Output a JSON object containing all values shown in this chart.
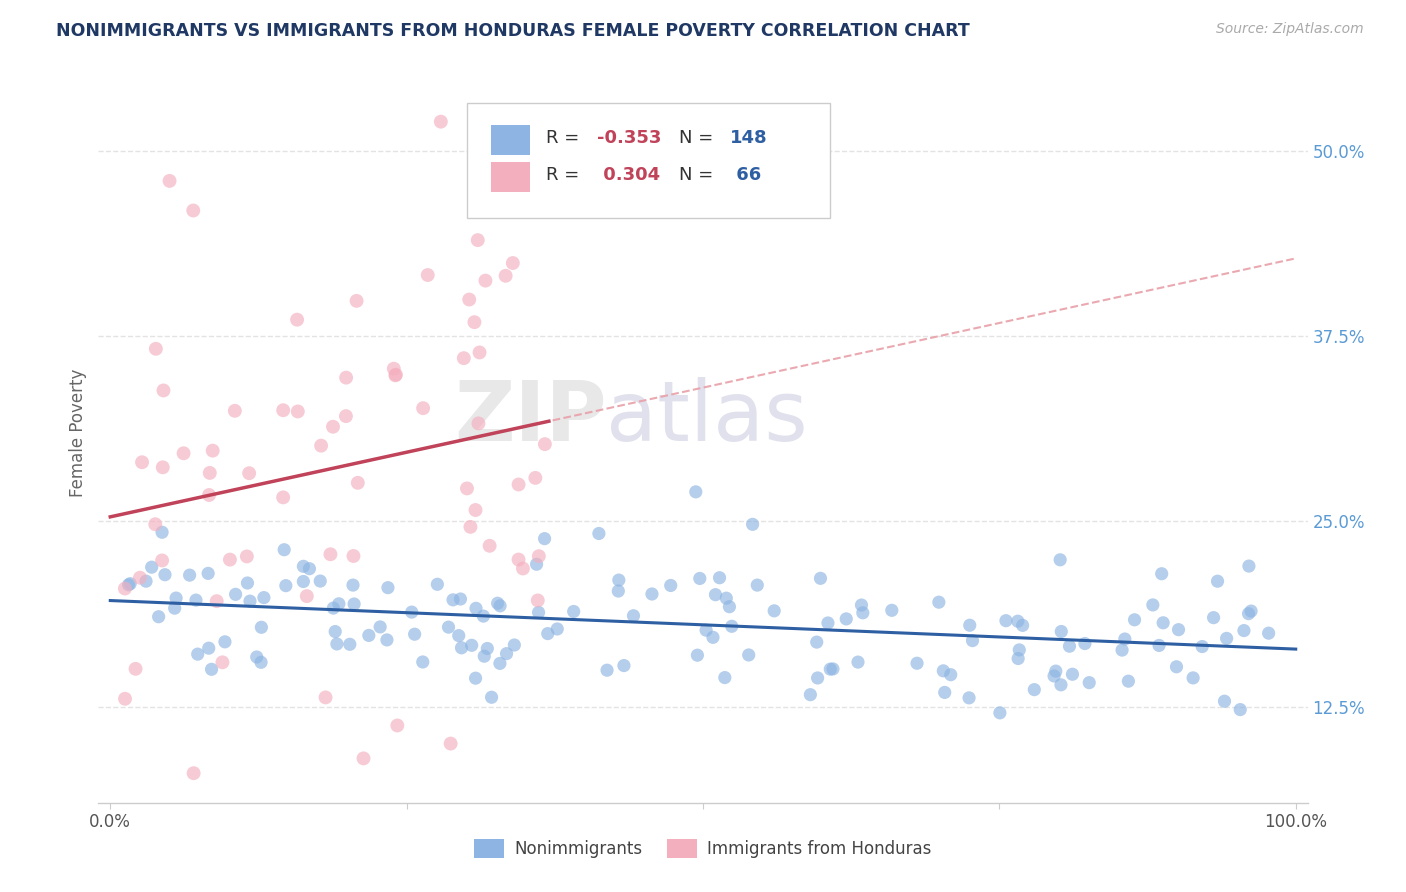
{
  "title": "NONIMMIGRANTS VS IMMIGRANTS FROM HONDURAS FEMALE POVERTY CORRELATION CHART",
  "source": "Source: ZipAtlas.com",
  "ylabel": "Female Poverty",
  "legend1_R": "-0.353",
  "legend1_N": "148",
  "legend2_R": "0.304",
  "legend2_N": "66",
  "legend1_label": "Nonimmigrants",
  "legend2_label": "Immigrants from Honduras",
  "blue_color": "#8DB4E2",
  "pink_color": "#F4AFBF",
  "trend_blue": "#2E5FA3",
  "trend_pink": "#C0435A",
  "trend_dashed_color": "#E8A0A8",
  "title_color": "#1F3864",
  "source_color": "#AAAAAA",
  "axis_label_color": "#666666",
  "right_tick_color": "#5B9BD5",
  "legend_text_color": "#2E5FA3",
  "legend_R_color": "#C0435A",
  "ytick_labels_right": [
    "12.5%",
    "25.0%",
    "37.5%",
    "50.0%"
  ],
  "yticks_right": [
    0.125,
    0.25,
    0.375,
    0.5
  ],
  "grid_color": "#DDDDDD",
  "bg_color": "#FFFFFF",
  "watermark_zip_color": "#CCCCCC",
  "watermark_atlas_color": "#AAAACC",
  "ylim_low": 0.06,
  "ylim_high": 0.56,
  "xlim_low": -0.01,
  "xlim_high": 1.01
}
